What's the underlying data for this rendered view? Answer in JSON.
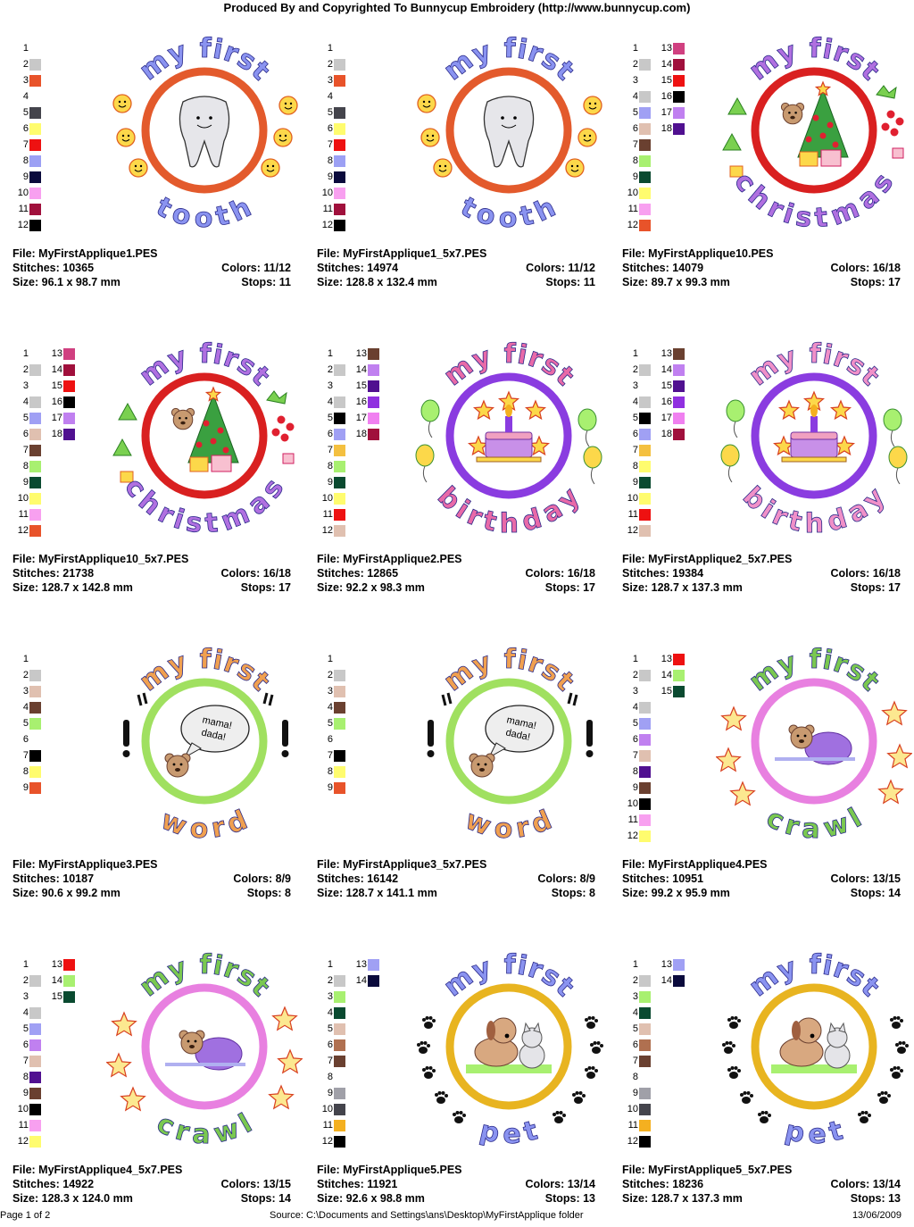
{
  "header": "Produced By and Copyrighted To Bunnycup Embroidery (http://www.bunnycup.com)",
  "footer": {
    "page": "Page 1 of 2",
    "source": "Source: C:\\Documents and Settings\\ans\\Desktop\\MyFirstApplique folder",
    "date": "13/06/2009"
  },
  "labels": {
    "file": "File:",
    "stitches": "Stitches:",
    "size": "Size:",
    "colors": "Colors:",
    "stops": "Stops:"
  },
  "designs": [
    {
      "file": "MyFirstApplique1.PES",
      "stitches": "10365",
      "colors": "11/12",
      "size": "96.1 x 98.7 mm",
      "stops": "11",
      "top_text": "my first",
      "bottom_text": "tooth",
      "motif": "tooth",
      "ring": "#e35a2c",
      "text_color": "#8a93f0",
      "swatches": [
        "",
        "#c8c8c8",
        "#e8532a",
        "",
        "#44444c",
        "#fffc6e",
        "#ee1111",
        "#9ca0f4",
        "#0a0a3c",
        "#f8a0f0",
        "#a0103c",
        "#000000"
      ]
    },
    {
      "file": "MyFirstApplique1_5x7.PES",
      "stitches": "14974",
      "colors": "11/12",
      "size": "128.8 x 132.4 mm",
      "stops": "11",
      "top_text": "my first",
      "bottom_text": "tooth",
      "motif": "tooth",
      "ring": "#e35a2c",
      "text_color": "#8a93f0",
      "swatches": [
        "",
        "#c8c8c8",
        "#e8532a",
        "",
        "#44444c",
        "#fffc6e",
        "#ee1111",
        "#9ca0f4",
        "#0a0a3c",
        "#f8a0f0",
        "#a0103c",
        "#000000"
      ]
    },
    {
      "file": "MyFirstApplique10.PES",
      "stitches": "14079",
      "colors": "16/18",
      "size": "89.7 x 99.3 mm",
      "stops": "17",
      "top_text": "my first",
      "bottom_text": "christmas",
      "motif": "tree",
      "ring": "#d92020",
      "text_color": "#b070e0",
      "swatches": [
        "",
        "#c8c8c8",
        "",
        "#c8c8c8",
        "#a0a0f4",
        "#e0c0b0",
        "#6a4030",
        "#a8f070",
        "#0a4a30",
        "#fffc6e",
        "#f8a0f0",
        "#e8532a",
        "#d04080",
        "#a0103c",
        "#ee1111",
        "#000000",
        "#c080f0",
        "#501090"
      ]
    },
    {
      "file": "MyFirstApplique10_5x7.PES",
      "stitches": "21738",
      "colors": "16/18",
      "size": "128.7 x 142.8 mm",
      "stops": "17",
      "top_text": "my first",
      "bottom_text": "christmas",
      "motif": "tree",
      "ring": "#d92020",
      "text_color": "#b070e0",
      "swatches": [
        "",
        "#c8c8c8",
        "",
        "#c8c8c8",
        "#a0a0f4",
        "#e0c0b0",
        "#6a4030",
        "#a8f070",
        "#0a4a30",
        "#fffc6e",
        "#f8a0f0",
        "#e8532a",
        "#d04080",
        "#a0103c",
        "#ee1111",
        "#000000",
        "#c080f0",
        "#501090"
      ]
    },
    {
      "file": "MyFirstApplique2.PES",
      "stitches": "12865",
      "colors": "16/18",
      "size": "92.2 x 98.3 mm",
      "stops": "17",
      "top_text": "my first",
      "bottom_text": "birthday",
      "motif": "cake",
      "ring": "#8a3ce0",
      "text_color": "#e86aa8",
      "swatches": [
        "",
        "#c8c8c8",
        "",
        "#c8c8c8",
        "#000000",
        "#a0a0f4",
        "#f4c040",
        "#a8f070",
        "#0a4a30",
        "#fffc6e",
        "#ee1111",
        "#e0c0b0",
        "#6a4030",
        "#c080f0",
        "#501090",
        "#9030e0",
        "#f080f0",
        "#a0103c"
      ]
    },
    {
      "file": "MyFirstApplique2_5x7.PES",
      "stitches": "19384",
      "colors": "16/18",
      "size": "128.7 x 137.3 mm",
      "stops": "17",
      "top_text": "my first",
      "bottom_text": "birthday",
      "motif": "cake",
      "ring": "#8a3ce0",
      "text_color": "#f090c8",
      "swatches": [
        "",
        "#c8c8c8",
        "",
        "#c8c8c8",
        "#000000",
        "#a0a0f4",
        "#f4c040",
        "#fffc6e",
        "#0a4a30",
        "#fffc6e",
        "#ee1111",
        "#e0c0b0",
        "#6a4030",
        "#c080f0",
        "#501090",
        "#9030e0",
        "#f080f0",
        "#a0103c"
      ]
    },
    {
      "file": "MyFirstApplique3.PES",
      "stitches": "10187",
      "colors": "8/9",
      "size": "90.6 x 99.2 mm",
      "stops": "8",
      "top_text": "my first",
      "bottom_text": "word",
      "motif": "word",
      "ring": "#a0e060",
      "text_color": "#f0a050",
      "swatches": [
        "",
        "#c8c8c8",
        "#e0c0b0",
        "#6a4030",
        "#a8f070",
        "",
        "#000000",
        "#fffc6e",
        "#e8532a"
      ]
    },
    {
      "file": "MyFirstApplique3_5x7.PES",
      "stitches": "16142",
      "colors": "8/9",
      "size": "128.7 x 141.1 mm",
      "stops": "8",
      "top_text": "my first",
      "bottom_text": "word",
      "motif": "word",
      "ring": "#a0e060",
      "text_color": "#f0a050",
      "swatches": [
        "",
        "#c8c8c8",
        "#e0c0b0",
        "#6a4030",
        "#a8f070",
        "",
        "#000000",
        "#fffc6e",
        "#e8532a"
      ]
    },
    {
      "file": "MyFirstApplique4.PES",
      "stitches": "10951",
      "colors": "13/15",
      "size": "99.2 x 95.9 mm",
      "stops": "14",
      "top_text": "my first",
      "bottom_text": "crawl",
      "motif": "crawl",
      "ring": "#e880e0",
      "text_color": "#7ac850",
      "swatches": [
        "",
        "#c8c8c8",
        "",
        "#c8c8c8",
        "#a0a0f4",
        "#c080f0",
        "#e0c0b0",
        "#501090",
        "#6a4030",
        "#000000",
        "#f8a0f0",
        "#fffc6e",
        "#ee1111",
        "#a8f070",
        "#0a4a30"
      ]
    },
    {
      "file": "MyFirstApplique4_5x7.PES",
      "stitches": "14922",
      "colors": "13/15",
      "size": "128.3 x 124.0 mm",
      "stops": "14",
      "top_text": "my first",
      "bottom_text": "crawl",
      "motif": "crawl",
      "ring": "#e880e0",
      "text_color": "#7ac850",
      "swatches": [
        "",
        "#c8c8c8",
        "",
        "#c8c8c8",
        "#a0a0f4",
        "#c080f0",
        "#e0c0b0",
        "#501090",
        "#6a4030",
        "#000000",
        "#f8a0f0",
        "#fffc6e",
        "#ee1111",
        "#a8f070",
        "#0a4a30"
      ]
    },
    {
      "file": "MyFirstApplique5.PES",
      "stitches": "11921",
      "colors": "13/14",
      "size": "92.6 x 98.8 mm",
      "stops": "13",
      "top_text": "my first",
      "bottom_text": "pet",
      "motif": "pet",
      "ring": "#e8b420",
      "text_color": "#8a93f0",
      "swatches": [
        "",
        "#c8c8c8",
        "#a8f070",
        "#0a4a30",
        "#e0c0b0",
        "#b07050",
        "#6a4030",
        "",
        "#a0a0a8",
        "#44444c",
        "#f4b020",
        "#000000",
        "#a0a0f4",
        "#0a0a3c"
      ]
    },
    {
      "file": "MyFirstApplique5_5x7.PES",
      "stitches": "18236",
      "colors": "13/14",
      "size": "128.7 x 137.3 mm",
      "stops": "13",
      "top_text": "my first",
      "bottom_text": "pet",
      "motif": "pet",
      "ring": "#e8b420",
      "text_color": "#8a93f0",
      "swatches": [
        "",
        "#c8c8c8",
        "#a8f070",
        "#0a4a30",
        "#e0c0b0",
        "#b07050",
        "#6a4030",
        "",
        "#a0a0a8",
        "#44444c",
        "#f4b020",
        "#000000",
        "#a0a0f4",
        "#0a0a3c"
      ]
    }
  ]
}
